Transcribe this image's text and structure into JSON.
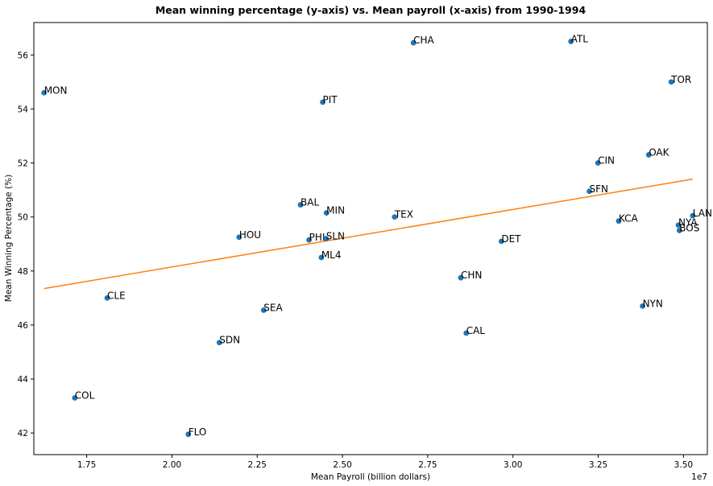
{
  "chart_data": {
    "type": "scatter",
    "title": "Mean winning percentage (y-axis) vs. Mean payroll (x-axis) from 1990-1994",
    "xlabel": "Mean Payroll (billion dollars)",
    "ylabel": "Mean Winning Percentage (%)",
    "x_offset_label": "1e7",
    "xlim": [
      15950000,
      35700000
    ],
    "ylim": [
      41.2,
      57.2
    ],
    "x_ticks": [
      17500000,
      20000000,
      22500000,
      25000000,
      27500000,
      30000000,
      32500000,
      35000000
    ],
    "x_tick_labels": [
      "1.75",
      "2.00",
      "2.25",
      "2.50",
      "2.75",
      "3.00",
      "3.25",
      "3.50"
    ],
    "y_ticks": [
      42,
      44,
      46,
      48,
      50,
      52,
      54,
      56
    ],
    "y_tick_labels": [
      "42",
      "44",
      "46",
      "48",
      "50",
      "52",
      "54",
      "56"
    ],
    "grid": false,
    "points": [
      {
        "label": "MON",
        "x": 16250000,
        "y": 54.6
      },
      {
        "label": "COL",
        "x": 17150000,
        "y": 43.3
      },
      {
        "label": "CLE",
        "x": 18100000,
        "y": 47.0
      },
      {
        "label": "FLO",
        "x": 20480000,
        "y": 41.95
      },
      {
        "label": "HOU",
        "x": 21970000,
        "y": 49.25
      },
      {
        "label": "SDN",
        "x": 21390000,
        "y": 45.35
      },
      {
        "label": "SEA",
        "x": 22690000,
        "y": 46.55
      },
      {
        "label": "BAL",
        "x": 23770000,
        "y": 50.45
      },
      {
        "label": "PHI",
        "x": 24020000,
        "y": 49.15
      },
      {
        "label": "ML4",
        "x": 24380000,
        "y": 48.5
      },
      {
        "label": "PIT",
        "x": 24420000,
        "y": 54.25
      },
      {
        "label": "MIN",
        "x": 24530000,
        "y": 50.15
      },
      {
        "label": "SLN",
        "x": 24520000,
        "y": 49.2
      },
      {
        "label": "TEX",
        "x": 26530000,
        "y": 50.0
      },
      {
        "label": "CHA",
        "x": 27080000,
        "y": 56.45
      },
      {
        "label": "CHN",
        "x": 28470000,
        "y": 47.75
      },
      {
        "label": "CAL",
        "x": 28630000,
        "y": 45.7
      },
      {
        "label": "DET",
        "x": 29660000,
        "y": 49.1
      },
      {
        "label": "ATL",
        "x": 31700000,
        "y": 56.5
      },
      {
        "label": "SFN",
        "x": 32240000,
        "y": 50.95
      },
      {
        "label": "CIN",
        "x": 32490000,
        "y": 52.0
      },
      {
        "label": "KCA",
        "x": 33100000,
        "y": 49.85
      },
      {
        "label": "NYN",
        "x": 33800000,
        "y": 46.7
      },
      {
        "label": "OAK",
        "x": 33980000,
        "y": 52.3
      },
      {
        "label": "TOR",
        "x": 34640000,
        "y": 55.0
      },
      {
        "label": "NYA",
        "x": 34850000,
        "y": 49.7
      },
      {
        "label": "BOS",
        "x": 34880000,
        "y": 49.5
      },
      {
        "label": "LAN",
        "x": 35270000,
        "y": 50.05
      }
    ],
    "trendline": {
      "x": [
        16250000,
        35270000
      ],
      "y": [
        47.35,
        51.4
      ]
    },
    "colors": {
      "points": "#1f77b4",
      "trendline": "#ff7f0e"
    }
  }
}
